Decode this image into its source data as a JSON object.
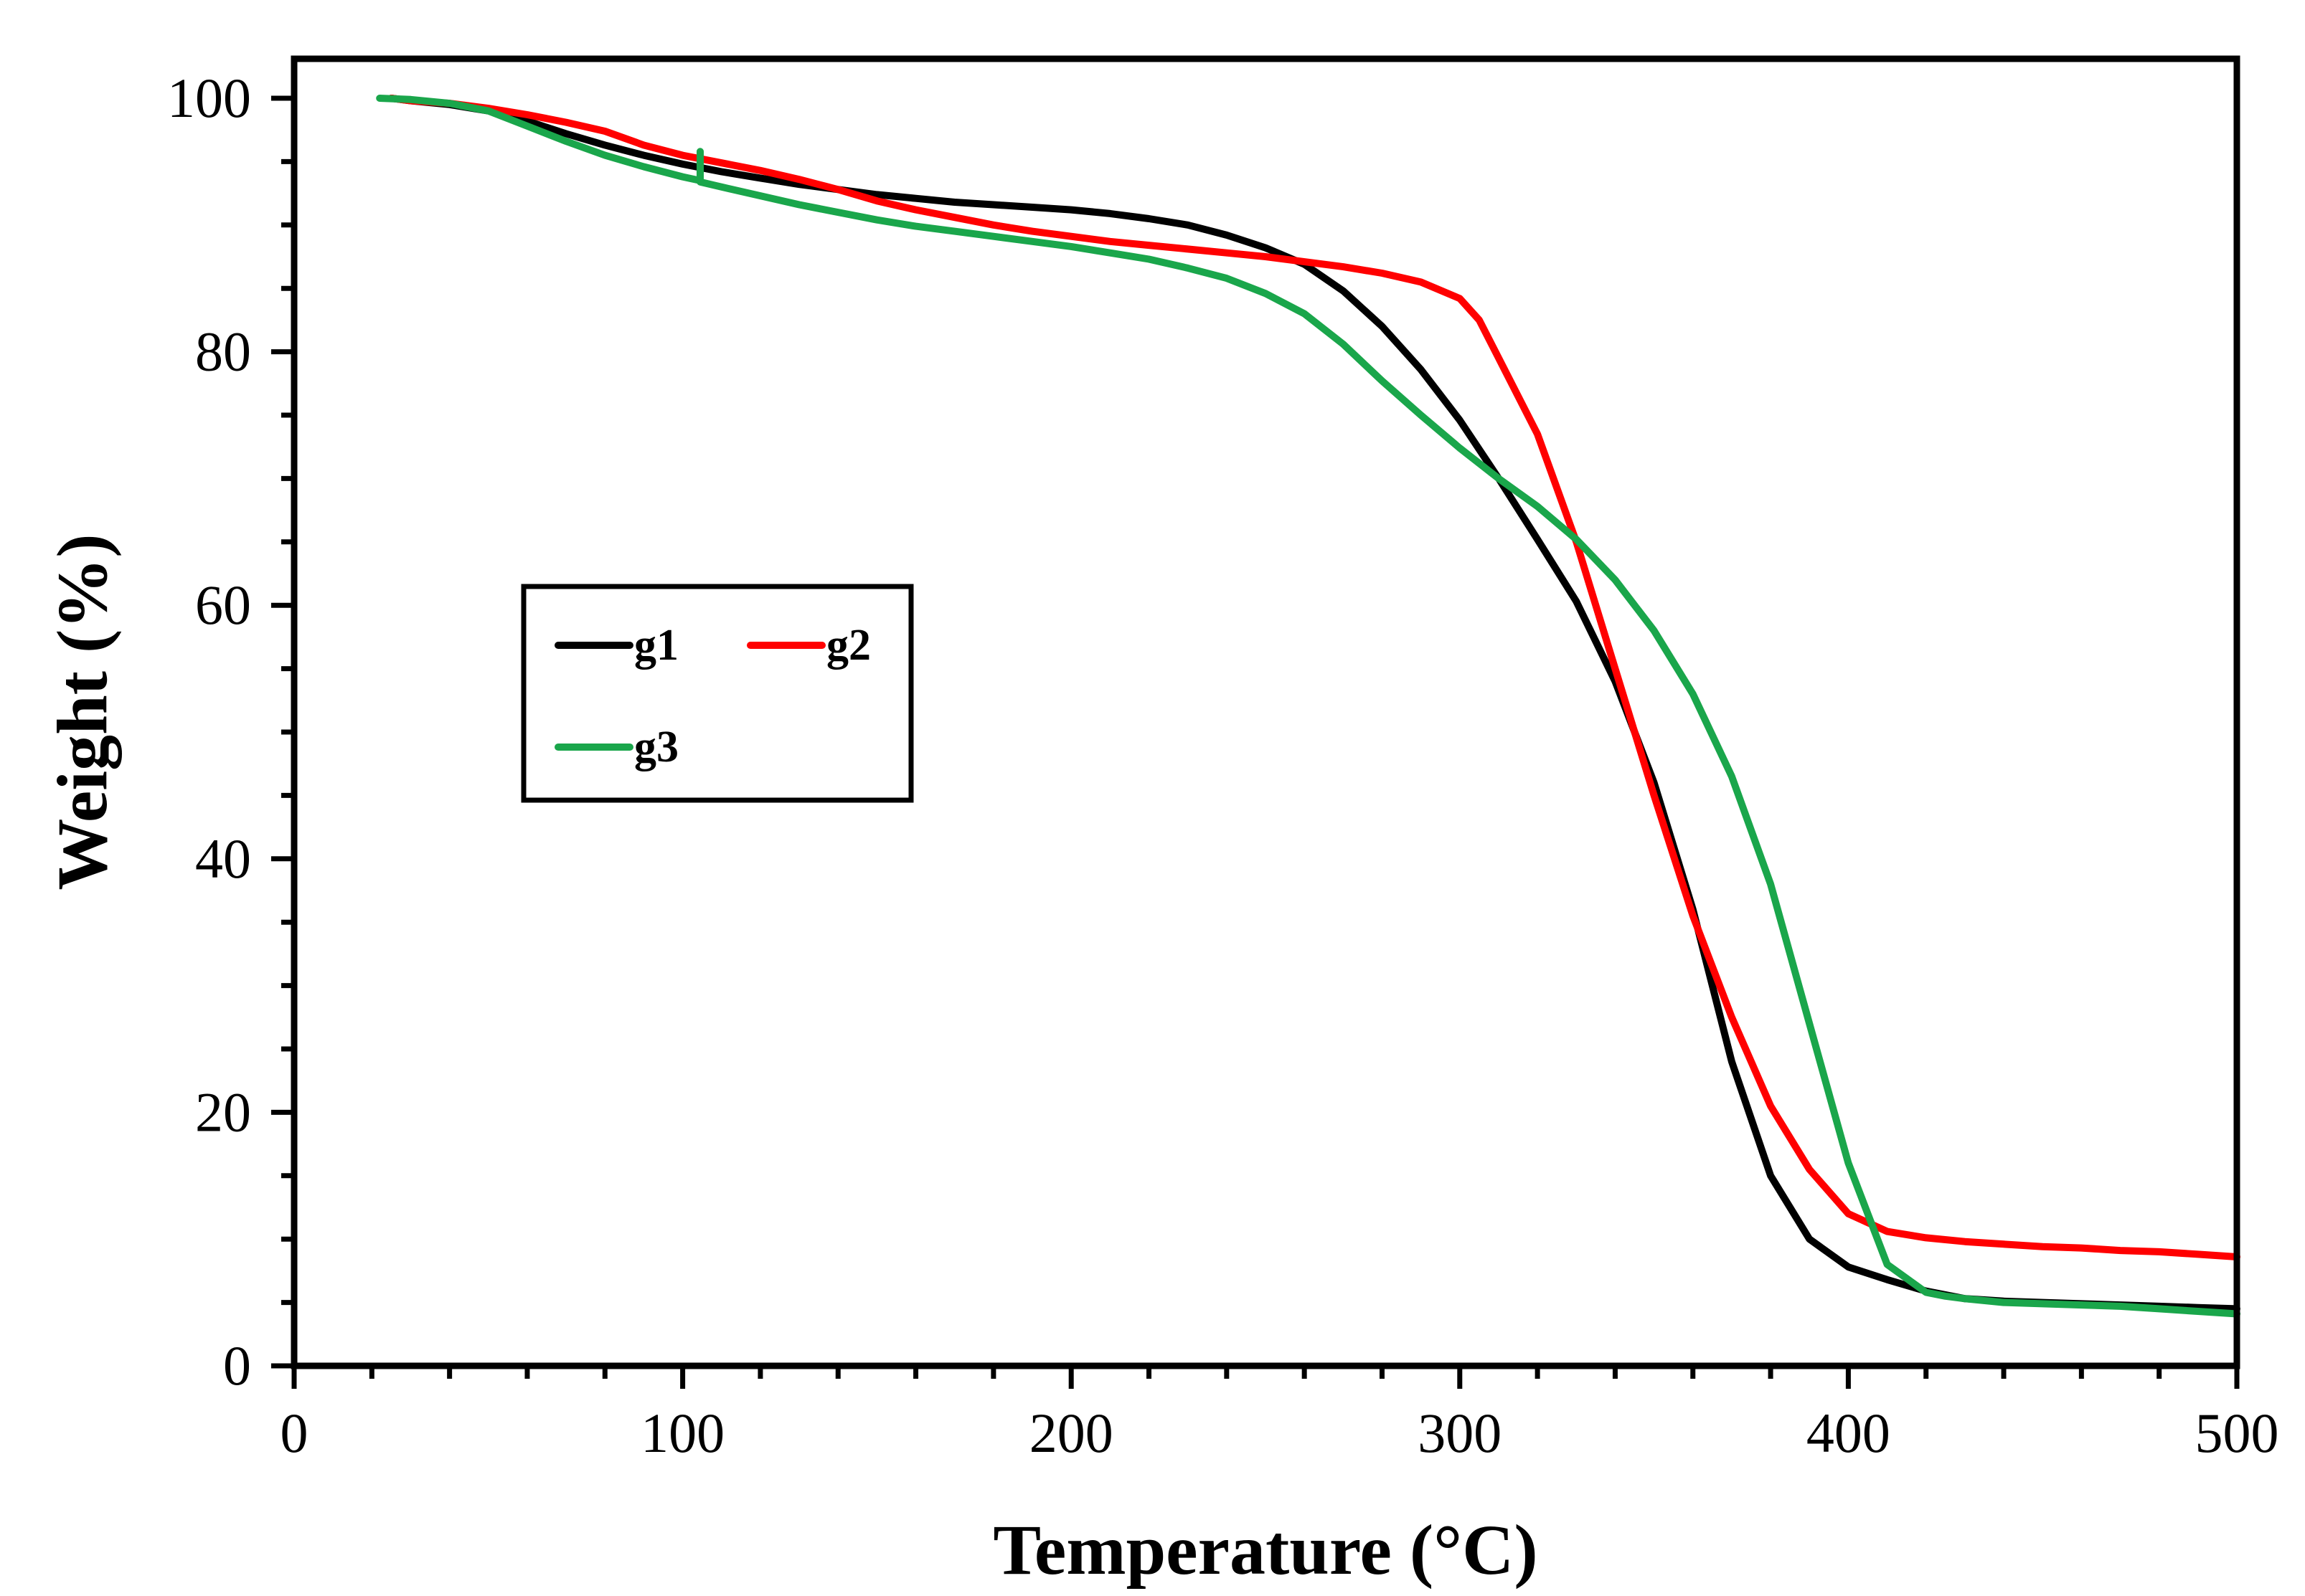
{
  "chart_data": {
    "type": "line",
    "title": "",
    "xlabel": "Temperature (°C)",
    "ylabel": "Weight (%)",
    "xlim": [
      0,
      500
    ],
    "ylim": [
      0,
      100
    ],
    "x_ticks": [
      0,
      100,
      200,
      300,
      400,
      500
    ],
    "y_ticks": [
      0,
      20,
      40,
      60,
      80,
      100
    ],
    "x_minor_step": 20,
    "y_minor_step": 5,
    "grid": false,
    "legend_position": "left-middle",
    "series": [
      {
        "name": "g1",
        "color": "#000000",
        "x": [
          25,
          30,
          40,
          50,
          60,
          70,
          80,
          90,
          100,
          110,
          120,
          130,
          140,
          150,
          160,
          170,
          180,
          190,
          200,
          210,
          220,
          230,
          240,
          250,
          260,
          270,
          280,
          290,
          300,
          310,
          320,
          330,
          340,
          350,
          360,
          370,
          380,
          390,
          400,
          410,
          420,
          430,
          440,
          450,
          460,
          470,
          480,
          490,
          500
        ],
        "y": [
          100,
          99.8,
          99.5,
          99.0,
          98.2,
          97.2,
          96.3,
          95.5,
          94.8,
          94.2,
          93.7,
          93.2,
          92.8,
          92.4,
          92.1,
          91.8,
          91.6,
          91.4,
          91.2,
          90.9,
          90.5,
          90.0,
          89.2,
          88.2,
          86.9,
          84.8,
          82.0,
          78.6,
          74.6,
          70.0,
          65.2,
          60.3,
          54.0,
          46.0,
          36.0,
          24.0,
          15.0,
          10.0,
          7.8,
          6.8,
          5.9,
          5.3,
          5.1,
          5.0,
          4.9,
          4.8,
          4.7,
          4.6,
          4.5
        ]
      },
      {
        "name": "g2",
        "color": "#ff0000",
        "x": [
          25,
          30,
          40,
          50,
          60,
          70,
          80,
          90,
          100,
          110,
          120,
          130,
          140,
          150,
          160,
          170,
          180,
          190,
          200,
          210,
          220,
          230,
          240,
          250,
          260,
          270,
          280,
          290,
          300,
          305,
          310,
          320,
          330,
          340,
          350,
          360,
          370,
          380,
          390,
          400,
          410,
          420,
          430,
          440,
          450,
          460,
          470,
          480,
          490,
          500
        ],
        "y": [
          100,
          99.8,
          99.6,
          99.2,
          98.7,
          98.1,
          97.4,
          96.3,
          95.5,
          94.9,
          94.3,
          93.6,
          92.8,
          91.9,
          91.2,
          90.6,
          90.0,
          89.5,
          89.1,
          88.7,
          88.4,
          88.1,
          87.8,
          87.5,
          87.1,
          86.7,
          86.2,
          85.5,
          84.2,
          82.5,
          79.5,
          73.5,
          65.0,
          55.0,
          45.0,
          35.5,
          27.5,
          20.5,
          15.5,
          12.0,
          10.6,
          10.1,
          9.8,
          9.6,
          9.4,
          9.3,
          9.1,
          9.0,
          8.8,
          8.6
        ]
      },
      {
        "name": "g3",
        "color": "#1aa64b",
        "x": [
          22,
          30,
          40,
          50,
          60,
          70,
          80,
          90,
          100,
          104.5,
          104.5,
          104.5,
          104.5,
          110,
          120,
          130,
          140,
          150,
          160,
          170,
          180,
          190,
          200,
          210,
          220,
          230,
          240,
          250,
          260,
          270,
          280,
          290,
          300,
          310,
          320,
          330,
          340,
          350,
          360,
          370,
          380,
          390,
          400,
          410,
          420,
          425,
          430,
          440,
          450,
          460,
          470,
          480,
          490,
          500
        ],
        "y": [
          100,
          99.9,
          99.6,
          99.0,
          97.8,
          96.6,
          95.5,
          94.6,
          93.8,
          93.5,
          95.8,
          93.5,
          93.4,
          93.0,
          92.3,
          91.6,
          91.0,
          90.4,
          89.9,
          89.5,
          89.1,
          88.7,
          88.3,
          87.8,
          87.3,
          86.6,
          85.8,
          84.6,
          83.0,
          80.6,
          77.7,
          75.0,
          72.4,
          70.0,
          67.8,
          65.2,
          62.0,
          58.0,
          53.0,
          46.5,
          38.0,
          27.0,
          16.0,
          8.0,
          5.8,
          5.5,
          5.3,
          5.0,
          4.9,
          4.8,
          4.7,
          4.5,
          4.3,
          4.1
        ]
      }
    ]
  }
}
